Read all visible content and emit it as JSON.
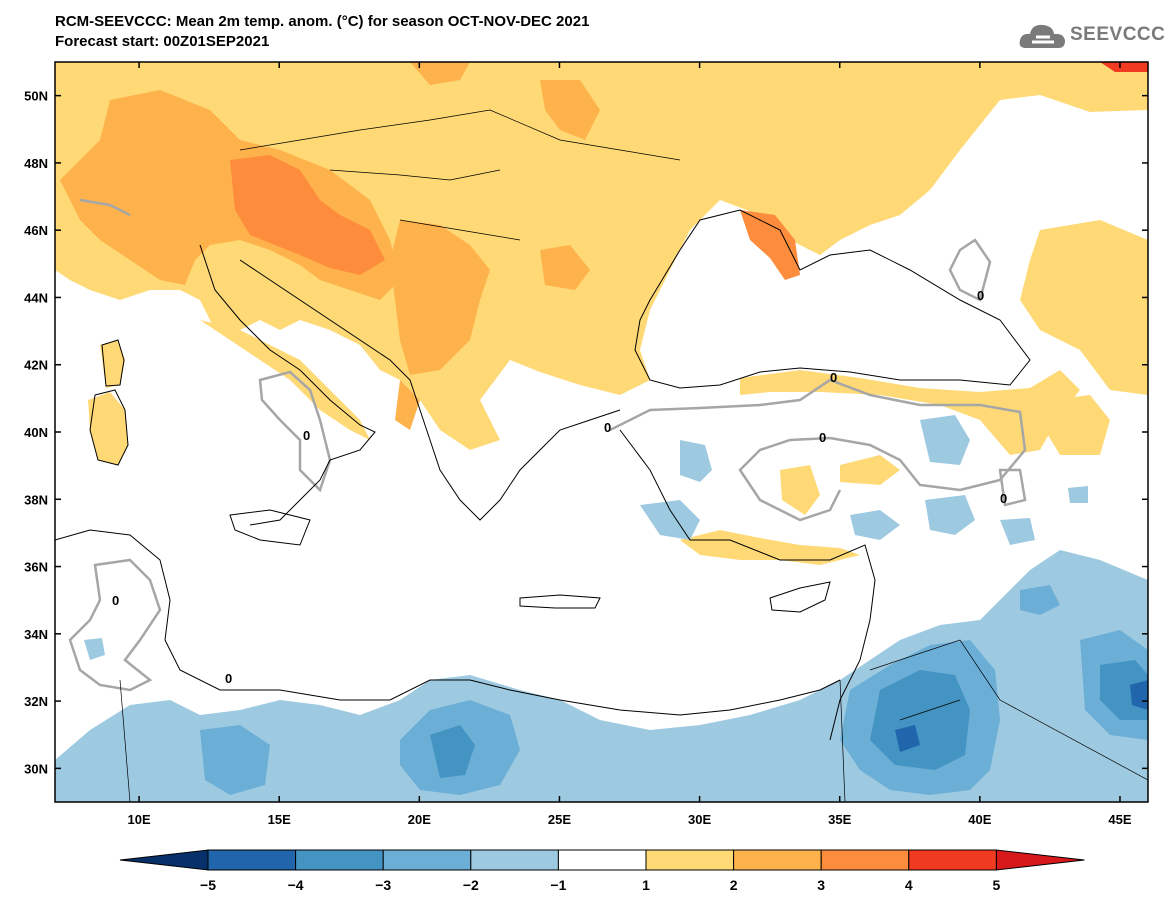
{
  "header": {
    "title_line1": "RCM-SEEVCCC: Mean 2m temp. anom. (°C) for season OCT-NOV-DEC 2021",
    "title_line2": "Forecast start: 00Z01SEP2021"
  },
  "logo": {
    "text": "SEEVCCC",
    "icon": "cloud-icon"
  },
  "map": {
    "lon_range": [
      7,
      46
    ],
    "lat_range": [
      29,
      51
    ],
    "lat_ticks": [
      "50N",
      "48N",
      "46N",
      "44N",
      "42N",
      "40N",
      "38N",
      "36N",
      "34N",
      "32N",
      "30N"
    ],
    "lon_ticks": [
      "10E",
      "15E",
      "20E",
      "25E",
      "30E",
      "35E",
      "40E",
      "45E"
    ],
    "contour_label": "0"
  },
  "colorbar": {
    "labels": [
      "-5",
      "-4",
      "-3",
      "-2",
      "-1",
      "1",
      "2",
      "3",
      "4",
      "5"
    ],
    "colors": [
      "#08306b",
      "#2166ac",
      "#4393c3",
      "#6baed6",
      "#9ecae1",
      "#ffffff",
      "#fed976",
      "#feb24c",
      "#fd8d3c",
      "#f03b20",
      "#d7191c"
    ]
  }
}
